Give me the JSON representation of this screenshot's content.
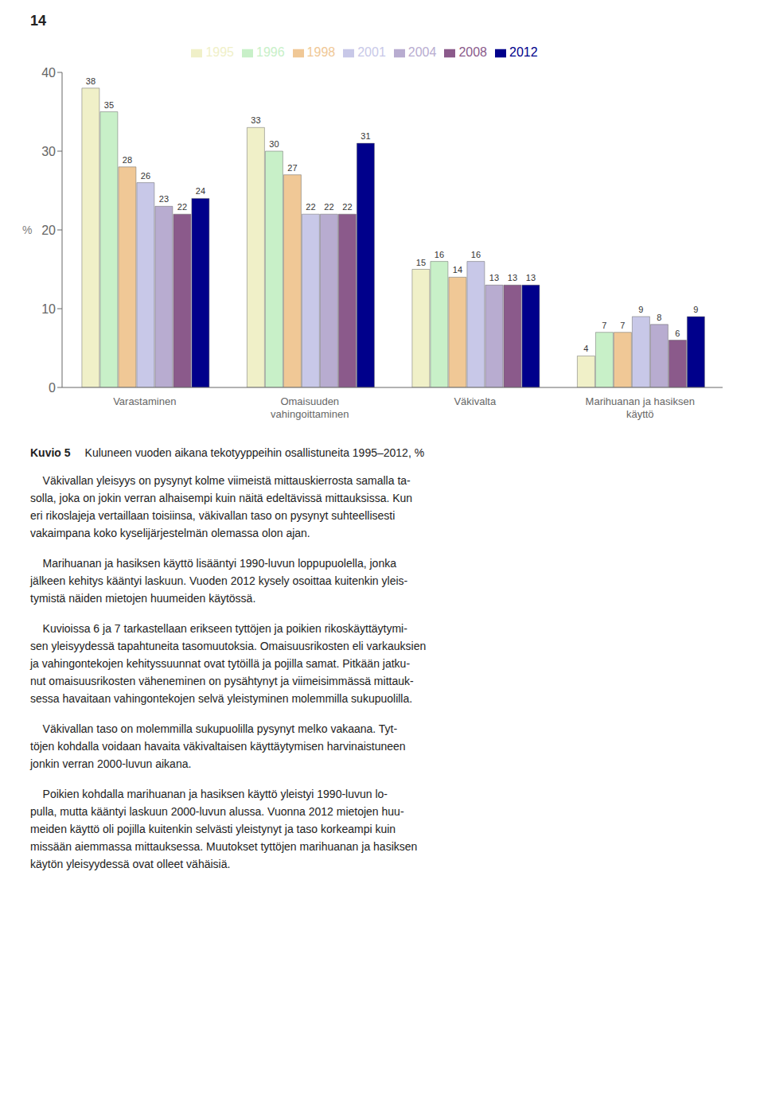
{
  "chart_data": {
    "type": "bar",
    "title": "Kuvio 5",
    "subtitle": "Kuluneen vuoden aikana tekotyyppeihin osallistuneita 1995–2012, %",
    "categories": [
      "Varastaminen",
      "Omaisuuden\nvahingoittaminen",
      "Väkivalta",
      "Marihuanan ja hasiksen\nkäyttö"
    ],
    "series": [
      {
        "name": "1995",
        "color": "#f0f0c8",
        "values": [
          38,
          33,
          15,
          4
        ]
      },
      {
        "name": "1996",
        "color": "#c8f0c8",
        "values": [
          35,
          30,
          16,
          7
        ]
      },
      {
        "name": "1998",
        "color": "#f0c896",
        "values": [
          28,
          27,
          14,
          7
        ]
      },
      {
        "name": "2001",
        "color": "#c8c8e8",
        "values": [
          26,
          22,
          16,
          9
        ]
      },
      {
        "name": "2004",
        "color": "#b8acd0",
        "values": [
          23,
          22,
          13,
          8
        ]
      },
      {
        "name": "2008",
        "color": "#8b5a8b",
        "values": [
          22,
          22,
          13,
          6
        ]
      },
      {
        "name": "2012",
        "color": "#00008b",
        "values": [
          24,
          31,
          13,
          9
        ]
      }
    ],
    "ylabel": "%",
    "ylim": [
      0,
      40
    ],
    "yticks": [
      0,
      10,
      20,
      30,
      40
    ],
    "grid": false,
    "legend": "top",
    "data_labels": true,
    "annotations": [
      "14",
      "    Väkivallan yleisyys on pysynyt kolme viimeistä mittauskierrosta samalla ta-\nsolla, joka on jokin verran alhaisempi kuin näitä edeltävissä mittauksissa. Kun\neri rikoslajeja vertaillaan toisiinsa, väkivallan taso on pysynyt suhteellisesti\nvakaimpana koko kyselijärjestelmän olemassa olon ajan.",
      "    Marihuanan ja hasiksen käyttö lisääntyi 1990-luvun loppupuolella, jonka\njälkeen kehitys kääntyi laskuun. Vuoden 2012 kysely osoittaa kuitenkin yleis-\ntymistä näiden mietojen huumeiden käytössä.",
      "    Kuvioissa 6 ja 7 tarkastellaan erikseen tyttöjen ja poikien rikoskäyttäytymi-\nsen yleisyydessä tapahtuneita tasomuutoksia. Omaisuusrikosten eli varkauksien\nja vahingontekojen kehityssuunnat ovat tytöillä ja pojilla samat. Pitkään jatku-\nnut omaisuusrikosten väheneminen on pysähtynyt ja viimeisimmässä mittauk-\nsessa havaitaan vahingontekojen selvä yleistyminen molemmilla sukupuolilla.",
      "    Väkivallan taso on molemmilla sukupuolilla pysynyt melko vakaana. Tyt-\ntöjen kohdalla voidaan havaita väkivaltaisen käyttäytymisen harvinaistuneen\njonkin verran 2000-luvun aikana.",
      "    Poikien kohdalla marihuanan ja hasiksen käyttö yleistyi 1990-luvun lo-\npulla, mutta kääntyi laskuun 2000-luvun alussa. Vuonna 2012 mietojen huu-\nmeiden käyttö oli pojilla kuitenkin selvästi yleistynyt ja taso korkeampi kuin\nmissään aiemmassa mittauksessa. Muutokset tyttöjen marihuanan ja hasiksen\nkäytön yleisyydessä ovat olleet vähäisiä."
    ]
  }
}
